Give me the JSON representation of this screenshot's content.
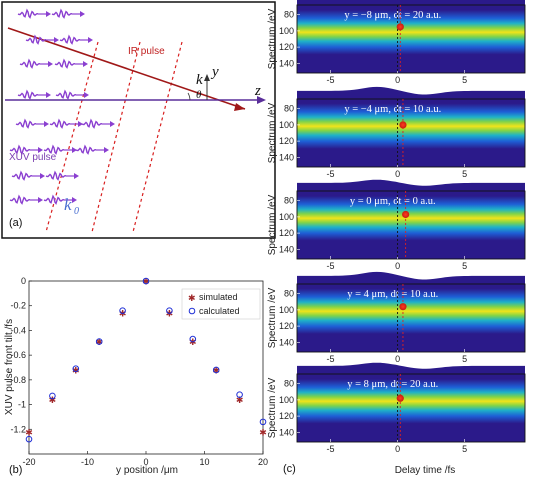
{
  "panel_a": {
    "ir_label": "IR pulse",
    "xuv_label": "XUV pulse",
    "k_label": "k",
    "k0_label": "k",
    "k0_sub": "0",
    "theta_label": "θ",
    "y_axis": "y",
    "z_axis": "z",
    "panel_label": "(a)"
  },
  "panel_b": {
    "panel_label": "(b)",
    "chart_data": {
      "type": "scatter",
      "xlabel": "y position /μm",
      "ylabel": "XUV pulse front tilt /fs",
      "xlim": [
        -20,
        20
      ],
      "ylim": [
        -1.4,
        0
      ],
      "xticks": [
        "-20",
        "-10",
        "0",
        "10",
        "20"
      ],
      "yticks": [
        "0",
        "-0.2",
        "-0.4",
        "-0.6",
        "-0.8",
        "-1",
        "-1.2"
      ],
      "legend_position": "top-right",
      "series": [
        {
          "name": "simulated",
          "color": "#a0282a",
          "x": [
            -20,
            -16,
            -12,
            -8,
            -4,
            0,
            4,
            8,
            12,
            16,
            20
          ],
          "y": [
            -1.22,
            -0.96,
            -0.72,
            -0.49,
            -0.26,
            0,
            -0.26,
            -0.49,
            -0.72,
            -0.96,
            -1.22
          ]
        },
        {
          "name": "calculated",
          "color": "#1f2fd6",
          "x": [
            -20,
            -16,
            -12,
            -8,
            -4,
            0,
            4,
            8,
            12,
            16,
            20
          ],
          "y": [
            -1.28,
            -0.93,
            -0.71,
            -0.49,
            -0.24,
            0,
            -0.24,
            -0.47,
            -0.72,
            -0.92,
            -1.14
          ]
        }
      ]
    }
  },
  "panel_c": {
    "panel_label": "(c)",
    "xlabel": "Delay time /fs",
    "ylabel": "Spectrum /eV",
    "chart_data": {
      "type": "heatmap",
      "xticks": [
        "-5",
        "0",
        "5"
      ],
      "yticks": [
        "80",
        "100",
        "120",
        "140"
      ],
      "colormap": [
        "#2b1a8a",
        "#1e5fd6",
        "#1fb2c8",
        "#7fd34a",
        "#f0e41a"
      ],
      "subplots": [
        {
          "title": "y = −8 μm, dt = 20 a.u.",
          "dot": [
            0.2,
            95
          ]
        },
        {
          "title": "y = −4 μm, dt = 10 a.u.",
          "dot": [
            0.4,
            100
          ]
        },
        {
          "title": "y = 0 μm, dt = 0 a.u.",
          "dot": [
            0.6,
            97
          ]
        },
        {
          "title": "y = 4 μm, dt = 10 a.u.",
          "dot": [
            0.4,
            96
          ]
        },
        {
          "title": "y = 8 μm, dt = 20 a.u.",
          "dot": [
            0.2,
            98
          ]
        }
      ]
    }
  }
}
